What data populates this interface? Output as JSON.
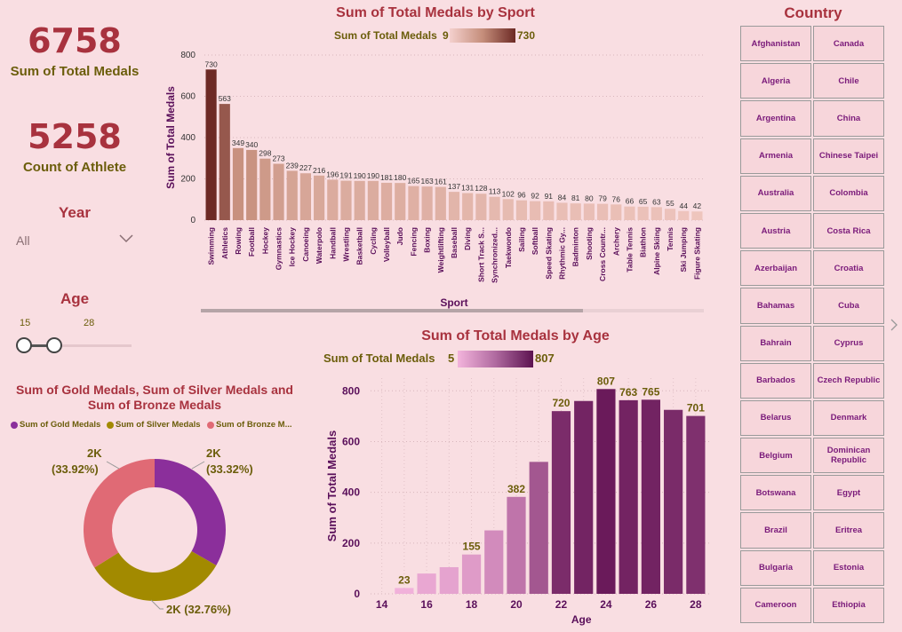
{
  "kpis": {
    "total_medals_value": "6758",
    "total_medals_label": "Sum of Total Medals",
    "athletes_value": "5258",
    "athletes_label": "Count of Athlete"
  },
  "year_slicer": {
    "title": "Year",
    "selected": "All"
  },
  "age_slicer": {
    "title": "Age",
    "min_label": "15",
    "max_label": "28",
    "min": 15,
    "max": 28
  },
  "country_slicer": {
    "title": "Country",
    "items": [
      "Afghanistan",
      "Canada",
      "Algeria",
      "Chile",
      "Argentina",
      "China",
      "Armenia",
      "Chinese Taipei",
      "Australia",
      "Colombia",
      "Austria",
      "Costa Rica",
      "Azerbaijan",
      "Croatia",
      "Bahamas",
      "Cuba",
      "Bahrain",
      "Cyprus",
      "Barbados",
      "Czech Republic",
      "Belarus",
      "Denmark",
      "Belgium",
      "Dominican Republic",
      "Botswana",
      "Egypt",
      "Brazil",
      "Eritrea",
      "Bulgaria",
      "Estonia",
      "Cameroon",
      "Ethiopia"
    ],
    "next_icon": "chevron-right-icon"
  },
  "colors": {
    "title": "#a8323e",
    "label": "#6b5d0a",
    "axis": "#5a0f5a",
    "gold": "#8b2f9b",
    "silver": "#a28a00",
    "bronze": "#e06a75"
  },
  "chart_data": [
    {
      "type": "bar",
      "title": "Sum of Total Medals by Sport",
      "legend_label": "Sum of Total Medals",
      "legend_min": "9",
      "legend_max": "730",
      "xlabel": "Sport",
      "ylabel": "Sum of Total Medals",
      "ylim": [
        0,
        800
      ],
      "yticks": [
        0,
        200,
        400,
        600,
        800
      ],
      "categories": [
        "Swimming",
        "Athletics",
        "Rowing",
        "Football",
        "Hockey",
        "Gymnastics",
        "Ice Hockey",
        "Canoeing",
        "Waterpolo",
        "Handball",
        "Wrestling",
        "Basketball",
        "Cycling",
        "Volleyball",
        "Judo",
        "Fencing",
        "Boxing",
        "Weightlifting",
        "Baseball",
        "Diving",
        "Short Track S...",
        "Synchronized...",
        "Taekwondo",
        "Sailing",
        "Softball",
        "Speed Skating",
        "Rhythmic Gy...",
        "Badminton",
        "Shooting",
        "Cross Countr...",
        "Archery",
        "Table Tennis",
        "Biathlon",
        "Alpine Skiing",
        "Tennis",
        "Ski Jumping",
        "Figure Skating"
      ],
      "values": [
        730,
        563,
        349,
        340,
        298,
        273,
        239,
        227,
        216,
        196,
        191,
        190,
        190,
        181,
        180,
        165,
        163,
        161,
        137,
        131,
        128,
        113,
        102,
        96,
        92,
        91,
        84,
        81,
        80,
        79,
        76,
        66,
        65,
        63,
        55,
        44,
        42
      ],
      "grid": true
    },
    {
      "type": "bar",
      "title": "Sum of Total Medals by Age",
      "legend_label": "Sum of Total Medals",
      "legend_min": "5",
      "legend_max": "807",
      "xlabel": "Age",
      "ylabel": "Sum of Total Medals",
      "ylim": [
        0,
        850
      ],
      "yticks": [
        0,
        200,
        400,
        600,
        800
      ],
      "xticks": [
        14,
        16,
        18,
        20,
        22,
        24,
        26,
        28
      ],
      "x": [
        15,
        16,
        17,
        18,
        19,
        20,
        21,
        22,
        23,
        24,
        25,
        26,
        27,
        28
      ],
      "values": [
        23,
        80,
        105,
        155,
        250,
        382,
        520,
        720,
        760,
        807,
        763,
        765,
        725,
        701
      ],
      "data_labels": {
        "15": "23",
        "18": "155",
        "20": "382",
        "22": "720",
        "24": "807",
        "25": "763",
        "26": "765",
        "28": "701"
      },
      "grid": true
    },
    {
      "type": "pie",
      "title": "Sum of Gold Medals, Sum of Silver Medals and Sum of Bronze Medals",
      "legend_position": "top",
      "series": [
        {
          "name": "Sum of Gold Medals",
          "legend": "Sum of Gold Medals",
          "percent": 33.32,
          "label": "2K",
          "pct_label": "(33.32%)"
        },
        {
          "name": "Sum of Silver Medals",
          "legend": "Sum of Silver Medals",
          "percent": 32.76,
          "label": "2K",
          "pct_label": "(32.76%)"
        },
        {
          "name": "Sum of Bronze Medals",
          "legend": "Sum of Bronze M...",
          "percent": 33.92,
          "label": "2K",
          "pct_label": "(33.92%)"
        }
      ]
    }
  ]
}
